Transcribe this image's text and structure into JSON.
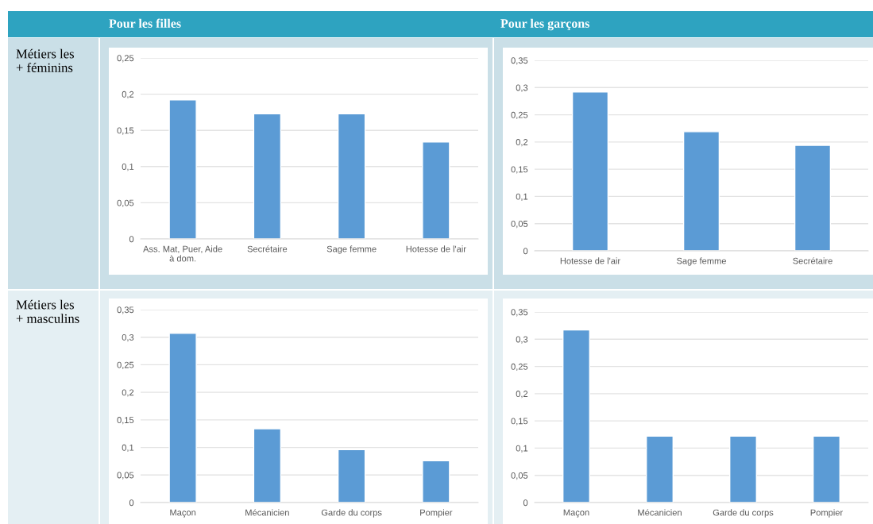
{
  "chart_data": [
    {
      "type": "bar",
      "categories": [
        "Ass. Mat, Puer, Aide\nà dom.",
        "Secrétaire",
        "Sage femme",
        "Hotesse de l'air"
      ],
      "values": [
        0.192,
        0.173,
        0.173,
        0.134
      ],
      "color": "#5b9bd5",
      "ylim": [
        0,
        0.25
      ],
      "yticks": [
        0,
        {
          "value": 0.05,
          "label": "0,05"
        },
        {
          "value": 0.1,
          "label": "0,1"
        },
        {
          "value": 0.15,
          "label": "0,15"
        },
        {
          "value": 0.2,
          "label": "0,2"
        },
        {
          "value": 0.25,
          "label": "0,25"
        }
      ],
      "grid": "y"
    },
    {
      "type": "bar",
      "categories": [
        "Hotesse de l'air",
        "Sage femme",
        "Secrétaire"
      ],
      "values": [
        0.292,
        0.219,
        0.194
      ],
      "color": "#5b9bd5",
      "ylim": [
        0,
        0.35
      ],
      "yticks": [
        0,
        {
          "value": 0.05,
          "label": "0,05"
        },
        {
          "value": 0.1,
          "label": "0,1"
        },
        {
          "value": 0.15,
          "label": "0,15"
        },
        {
          "value": 0.2,
          "label": "0,2"
        },
        {
          "value": 0.25,
          "label": "0,25"
        },
        {
          "value": 0.3,
          "label": "0,3"
        },
        {
          "value": 0.35,
          "label": "0,35"
        }
      ],
      "grid": "y"
    },
    {
      "type": "bar",
      "categories": [
        "Maçon",
        "Mécanicien",
        "Garde du corps",
        "Pompier"
      ],
      "values": [
        0.307,
        0.134,
        0.096,
        0.076
      ],
      "color": "#5b9bd5",
      "ylim": [
        0,
        0.35
      ],
      "yticks": [
        0,
        {
          "value": 0.05,
          "label": "0,05"
        },
        {
          "value": 0.1,
          "label": "0,1"
        },
        {
          "value": 0.15,
          "label": "0,15"
        },
        {
          "value": 0.2,
          "label": "0,2"
        },
        {
          "value": 0.25,
          "label": "0,25"
        },
        {
          "value": 0.3,
          "label": "0,3"
        },
        {
          "value": 0.35,
          "label": "0,35"
        }
      ],
      "grid": "y"
    },
    {
      "type": "bar",
      "categories": [
        "Maçon",
        "Mécanicien",
        "Garde du corps",
        "Pompier"
      ],
      "values": [
        0.317,
        0.122,
        0.122,
        0.122
      ],
      "color": "#5b9bd5",
      "ylim": [
        0,
        0.35
      ],
      "yticks": [
        0,
        {
          "value": 0.05,
          "label": "0,05"
        },
        {
          "value": 0.1,
          "label": "0,1"
        },
        {
          "value": 0.15,
          "label": "0,15"
        },
        {
          "value": 0.2,
          "label": "0,2"
        },
        {
          "value": 0.25,
          "label": "0,25"
        },
        {
          "value": 0.3,
          "label": "0,3"
        },
        {
          "value": 0.35,
          "label": "0,35"
        }
      ],
      "grid": "y"
    },
    {
      "type": "other",
      "annotations": [
        "Pour les filles",
        "Pour les garçons",
        "Métiers les\n+ féminins",
        "Métiers les\n+ masculins"
      ]
    }
  ]
}
